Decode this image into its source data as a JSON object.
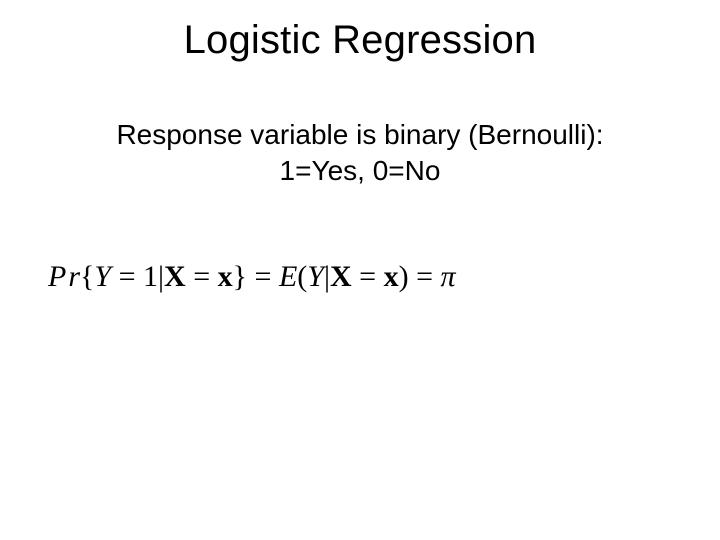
{
  "slide": {
    "title": "Logistic Regression",
    "subtitle_line1": "Response variable is binary (Bernoulli):",
    "subtitle_line2": "1=Yes, 0=No",
    "equation": {
      "Pr": "P",
      "r": "r",
      "lbrace": "{",
      "Y": "Y",
      "eq1": " = 1|",
      "X_bold": "X",
      "eq2": " = ",
      "x_bold": "x",
      "rbrace": "}",
      "eq3": " = ",
      "E": "E",
      "lparen": "(",
      "Y2": "Y",
      "bar": "|",
      "X_bold2": "X",
      "eq4": " = ",
      "x_bold2": "x",
      "rparen": ")",
      "eq5": " = ",
      "pi": "π"
    }
  },
  "styling": {
    "background_color": "#ffffff",
    "text_color": "#000000",
    "title_fontsize": 40,
    "subtitle_fontsize": 28,
    "equation_fontsize": 30,
    "body_font": "Arial",
    "equation_font": "Times New Roman",
    "slide_width": 720,
    "slide_height": 540
  }
}
